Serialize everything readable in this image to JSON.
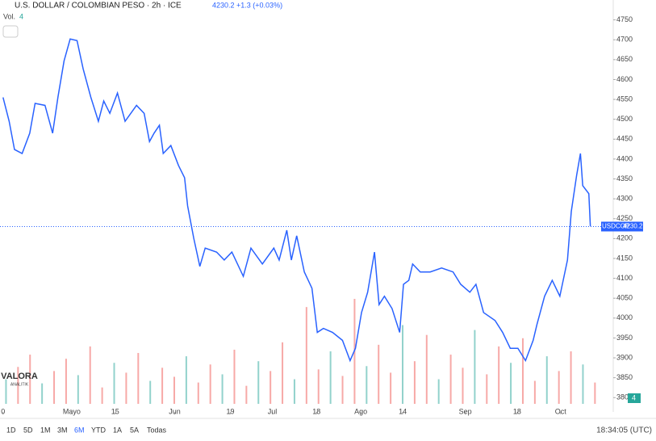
{
  "header": {
    "symbol": "U.S. DOLLAR / COLOMBIAN PESO · 2h · ICE",
    "quote": "4230.2 +1.3 (+0.03%)",
    "volume_label": "Vol.",
    "volume_value": "4"
  },
  "logo": {
    "name": "VALORA",
    "sub": "ANALITIK"
  },
  "toolbar": {
    "ranges": [
      "1D",
      "5D",
      "1M",
      "3M",
      "6M",
      "YTD",
      "1A",
      "5A",
      "Todas"
    ],
    "active": "6M",
    "clock": "18:34:05 (UTC)"
  },
  "chart_data": {
    "type": "line",
    "title": "U.S. DOLLAR / COLOMBIAN PESO",
    "x": [
      0,
      2,
      3.75,
      6.25,
      8.75,
      10.5,
      13.75,
      16.25,
      18,
      20,
      22,
      24.25,
      26.25,
      28.75,
      31.25,
      33,
      35,
      37.5,
      40,
      43.75,
      46.25,
      48,
      49.5,
      51.25,
      52.5,
      55,
      57.5,
      59.5,
      60.5,
      62.5,
      64.5,
      66.25,
      70,
      72.5,
      75,
      78.75,
      81.25,
      85,
      88.75,
      90.5,
      93,
      94.5,
      96.25,
      98.75,
      101.25,
      103,
      105,
      108,
      111.25,
      113.75,
      115.5,
      117.5,
      119.5,
      121.75,
      123.25,
      125,
      127.5,
      130,
      131.25,
      133,
      134.25,
      136.75,
      140,
      143.75,
      147.5,
      150,
      153,
      155,
      157.5,
      161.25,
      163.75,
      166.25,
      168.75,
      171.25,
      173.75,
      175,
      177.5,
      180,
      182.5,
      185,
      186.25,
      188,
      189.25,
      190,
      192,
      192.5
    ],
    "series": [
      {
        "name": "USDCOP",
        "color": "#2962ff",
        "values": [
          4555,
          4495,
          4424,
          4414,
          4465,
          4540,
          4535,
          4465,
          4556,
          4647,
          4702,
          4698,
          4627,
          4556,
          4495,
          4546,
          4515,
          4566,
          4495,
          4535,
          4515,
          4444,
          4465,
          4485,
          4414,
          4434,
          4384,
          4353,
          4282,
          4201,
          4130,
          4176,
          4166,
          4146,
          4166,
          4105,
          4176,
          4136,
          4176,
          4146,
          4221,
          4146,
          4207,
          4116,
          4075,
          3964,
          3974,
          3964,
          3944,
          3893,
          3924,
          4014,
          4065,
          4166,
          4034,
          4055,
          4024,
          3964,
          4085,
          4095,
          4136,
          4116,
          4116,
          4126,
          4116,
          4085,
          4065,
          4085,
          4014,
          3994,
          3964,
          3924,
          3924,
          3893,
          3944,
          3984,
          4055,
          4095,
          4055,
          4146,
          4268,
          4359,
          4414,
          4333,
          4313,
          4231
        ]
      }
    ],
    "last_price": {
      "value": 4230.2,
      "label": "4230.2",
      "tag": "USDCOP"
    },
    "volume": {
      "values": [
        30,
        45,
        60,
        25,
        40,
        55,
        35,
        70,
        20,
        50,
        38,
        62,
        28,
        44,
        33,
        58,
        26,
        48,
        36,
        66,
        22,
        52,
        40,
        75,
        30,
        118,
        42,
        64,
        34,
        128,
        46,
        72,
        38,
        96,
        52,
        84,
        30,
        60,
        44,
        90,
        36,
        70,
        50,
        80,
        28,
        58,
        40,
        64,
        48,
        26
      ],
      "up_color": "#26a69a",
      "down_color": "#ef5350"
    },
    "ylim": [
      3764,
      4800
    ],
    "xlim": [
      -1,
      200
    ],
    "yticks": [
      3800,
      3850,
      3900,
      3950,
      4000,
      4050,
      4100,
      4150,
      4200,
      4250,
      4300,
      4350,
      4400,
      4450,
      4500,
      4550,
      4600,
      4650,
      4700,
      4750
    ],
    "xticks": [
      {
        "value": 0,
        "label": "0"
      },
      {
        "value": 22.5,
        "label": "Mayo"
      },
      {
        "value": 36.75,
        "label": "15"
      },
      {
        "value": 56.25,
        "label": "Jun"
      },
      {
        "value": 74.5,
        "label": "19"
      },
      {
        "value": 88.25,
        "label": "Jul"
      },
      {
        "value": 102.75,
        "label": "18"
      },
      {
        "value": 117.25,
        "label": "Ago"
      },
      {
        "value": 131,
        "label": "14"
      },
      {
        "value": 151.5,
        "label": "Sep"
      },
      {
        "value": 168.5,
        "label": "18"
      },
      {
        "value": 182.75,
        "label": "Oct"
      }
    ]
  }
}
